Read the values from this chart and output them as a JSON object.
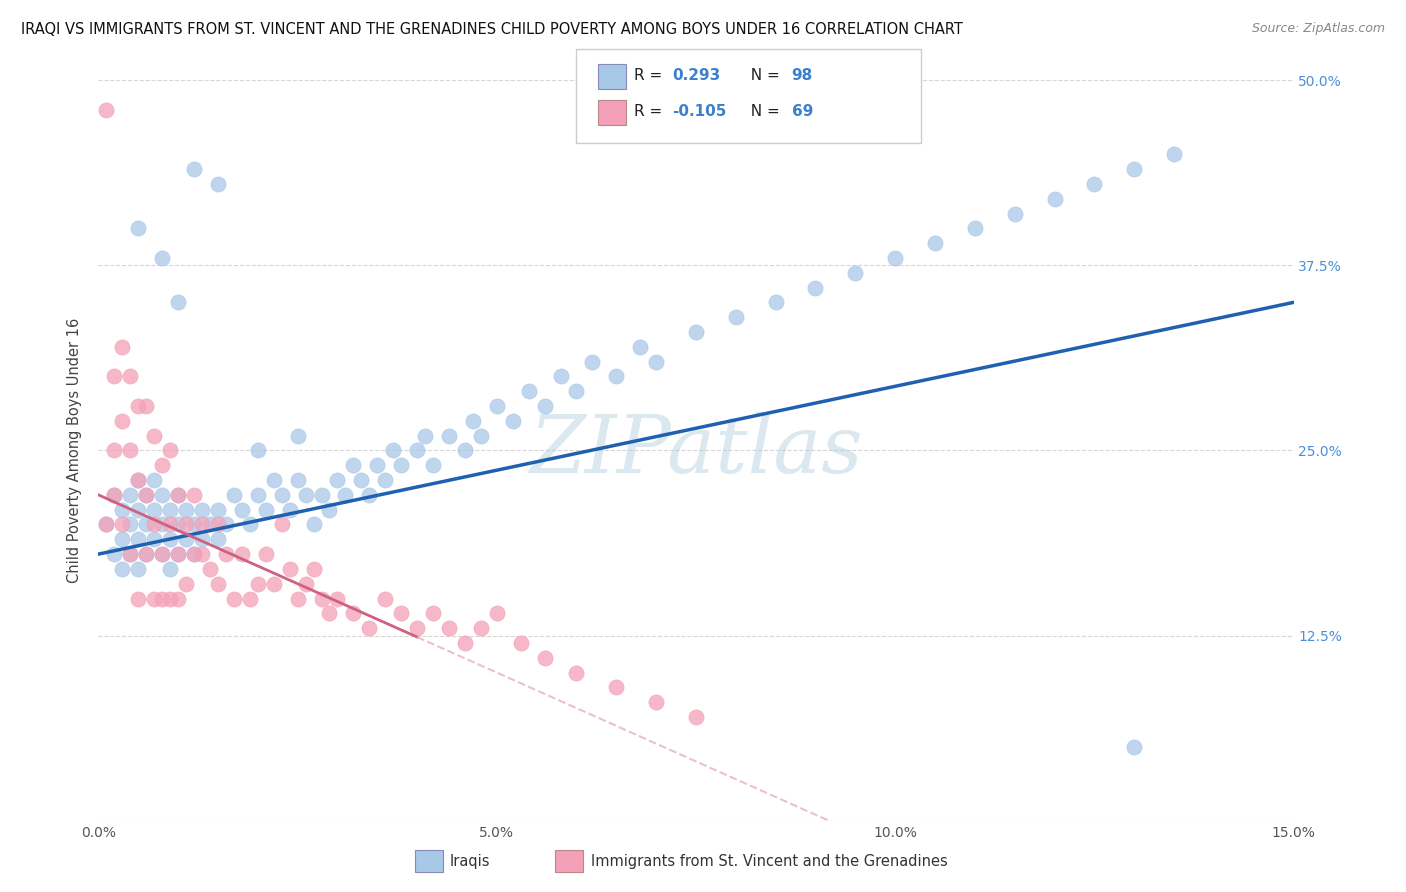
{
  "title": "IRAQI VS IMMIGRANTS FROM ST. VINCENT AND THE GRENADINES CHILD POVERTY AMONG BOYS UNDER 16 CORRELATION CHART",
  "source": "Source: ZipAtlas.com",
  "ylabel": "Child Poverty Among Boys Under 16",
  "watermark": "ZIPatlas",
  "iraqis_R": 0.293,
  "iraqis_N": 98,
  "svg_R": -0.105,
  "svg_N": 69,
  "x_min": 0.0,
  "x_max": 0.15,
  "y_min": 0.0,
  "y_max": 0.5,
  "x_tick_vals": [
    0.0,
    0.05,
    0.1,
    0.15
  ],
  "x_tick_labels": [
    "0.0%",
    "5.0%",
    "10.0%",
    "15.0%"
  ],
  "y_tick_vals": [
    0.0,
    0.125,
    0.25,
    0.375,
    0.5
  ],
  "y_tick_labels": [
    "",
    "12.5%",
    "25.0%",
    "37.5%",
    "50.0%"
  ],
  "iraqis_color": "#a8c8e8",
  "svg_color": "#f4a0b8",
  "iraqis_line_color": "#2060b0",
  "svg_line_color": "#d06080",
  "svg_line_dash_color": "#e8b0c0",
  "legend_iraqis": "Iraqis",
  "legend_svg": "Immigrants from St. Vincent and the Grenadines",
  "iraqis_x": [
    0.001,
    0.002,
    0.002,
    0.003,
    0.003,
    0.003,
    0.004,
    0.004,
    0.004,
    0.005,
    0.005,
    0.005,
    0.005,
    0.006,
    0.006,
    0.006,
    0.007,
    0.007,
    0.007,
    0.008,
    0.008,
    0.008,
    0.009,
    0.009,
    0.009,
    0.01,
    0.01,
    0.01,
    0.011,
    0.011,
    0.012,
    0.012,
    0.013,
    0.013,
    0.014,
    0.015,
    0.015,
    0.016,
    0.017,
    0.018,
    0.019,
    0.02,
    0.021,
    0.022,
    0.023,
    0.024,
    0.025,
    0.026,
    0.027,
    0.028,
    0.029,
    0.03,
    0.031,
    0.032,
    0.033,
    0.034,
    0.035,
    0.036,
    0.037,
    0.038,
    0.04,
    0.041,
    0.042,
    0.044,
    0.046,
    0.047,
    0.048,
    0.05,
    0.052,
    0.054,
    0.056,
    0.058,
    0.06,
    0.062,
    0.065,
    0.068,
    0.07,
    0.075,
    0.08,
    0.085,
    0.09,
    0.095,
    0.1,
    0.105,
    0.11,
    0.115,
    0.12,
    0.125,
    0.13,
    0.135,
    0.005,
    0.008,
    0.01,
    0.012,
    0.015,
    0.02,
    0.025,
    0.13
  ],
  "iraqis_y": [
    0.2,
    0.18,
    0.22,
    0.19,
    0.21,
    0.17,
    0.2,
    0.22,
    0.18,
    0.21,
    0.19,
    0.23,
    0.17,
    0.2,
    0.22,
    0.18,
    0.19,
    0.21,
    0.23,
    0.18,
    0.2,
    0.22,
    0.19,
    0.21,
    0.17,
    0.2,
    0.18,
    0.22,
    0.19,
    0.21,
    0.18,
    0.2,
    0.19,
    0.21,
    0.2,
    0.19,
    0.21,
    0.2,
    0.22,
    0.21,
    0.2,
    0.22,
    0.21,
    0.23,
    0.22,
    0.21,
    0.23,
    0.22,
    0.2,
    0.22,
    0.21,
    0.23,
    0.22,
    0.24,
    0.23,
    0.22,
    0.24,
    0.23,
    0.25,
    0.24,
    0.25,
    0.26,
    0.24,
    0.26,
    0.25,
    0.27,
    0.26,
    0.28,
    0.27,
    0.29,
    0.28,
    0.3,
    0.29,
    0.31,
    0.3,
    0.32,
    0.31,
    0.33,
    0.34,
    0.35,
    0.36,
    0.37,
    0.38,
    0.39,
    0.4,
    0.41,
    0.42,
    0.43,
    0.44,
    0.45,
    0.4,
    0.38,
    0.35,
    0.44,
    0.43,
    0.25,
    0.26,
    0.05
  ],
  "svg_x": [
    0.001,
    0.001,
    0.002,
    0.002,
    0.002,
    0.003,
    0.003,
    0.003,
    0.004,
    0.004,
    0.004,
    0.005,
    0.005,
    0.005,
    0.006,
    0.006,
    0.006,
    0.007,
    0.007,
    0.007,
    0.008,
    0.008,
    0.008,
    0.009,
    0.009,
    0.009,
    0.01,
    0.01,
    0.01,
    0.011,
    0.011,
    0.012,
    0.012,
    0.013,
    0.013,
    0.014,
    0.015,
    0.015,
    0.016,
    0.017,
    0.018,
    0.019,
    0.02,
    0.021,
    0.022,
    0.023,
    0.024,
    0.025,
    0.026,
    0.027,
    0.028,
    0.029,
    0.03,
    0.032,
    0.034,
    0.036,
    0.038,
    0.04,
    0.042,
    0.044,
    0.046,
    0.048,
    0.05,
    0.053,
    0.056,
    0.06,
    0.065,
    0.07,
    0.075
  ],
  "svg_y": [
    0.2,
    0.48,
    0.25,
    0.3,
    0.22,
    0.27,
    0.32,
    0.2,
    0.25,
    0.3,
    0.18,
    0.23,
    0.28,
    0.15,
    0.22,
    0.28,
    0.18,
    0.2,
    0.26,
    0.15,
    0.18,
    0.24,
    0.15,
    0.2,
    0.25,
    0.15,
    0.18,
    0.22,
    0.15,
    0.2,
    0.16,
    0.18,
    0.22,
    0.18,
    0.2,
    0.17,
    0.16,
    0.2,
    0.18,
    0.15,
    0.18,
    0.15,
    0.16,
    0.18,
    0.16,
    0.2,
    0.17,
    0.15,
    0.16,
    0.17,
    0.15,
    0.14,
    0.15,
    0.14,
    0.13,
    0.15,
    0.14,
    0.13,
    0.14,
    0.13,
    0.12,
    0.13,
    0.14,
    0.12,
    0.11,
    0.1,
    0.09,
    0.08,
    0.07
  ]
}
